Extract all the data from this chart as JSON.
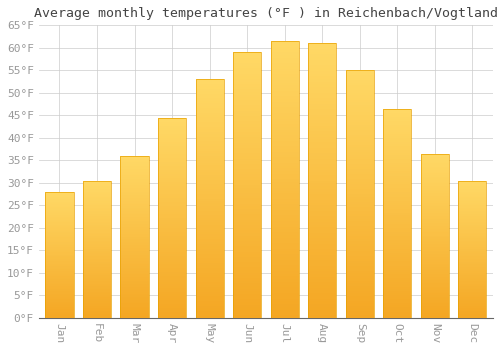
{
  "title": "Average monthly temperatures (°F ) in Reichenbach/Vogtland",
  "months": [
    "Jan",
    "Feb",
    "Mar",
    "Apr",
    "May",
    "Jun",
    "Jul",
    "Aug",
    "Sep",
    "Oct",
    "Nov",
    "Dec"
  ],
  "values": [
    28,
    30.5,
    36,
    44.5,
    53,
    59,
    61.5,
    61,
    55,
    46.5,
    36.5,
    30.5
  ],
  "bar_color_top": "#FFD966",
  "bar_color_bottom": "#F4A623",
  "bar_edge_color": "#E8A000",
  "background_color": "#FFFFFF",
  "grid_color": "#CCCCCC",
  "tick_label_color": "#999999",
  "title_color": "#444444",
  "ylim": [
    0,
    65
  ],
  "yticks": [
    0,
    5,
    10,
    15,
    20,
    25,
    30,
    35,
    40,
    45,
    50,
    55,
    60,
    65
  ],
  "title_fontsize": 9.5,
  "tick_fontsize": 8
}
